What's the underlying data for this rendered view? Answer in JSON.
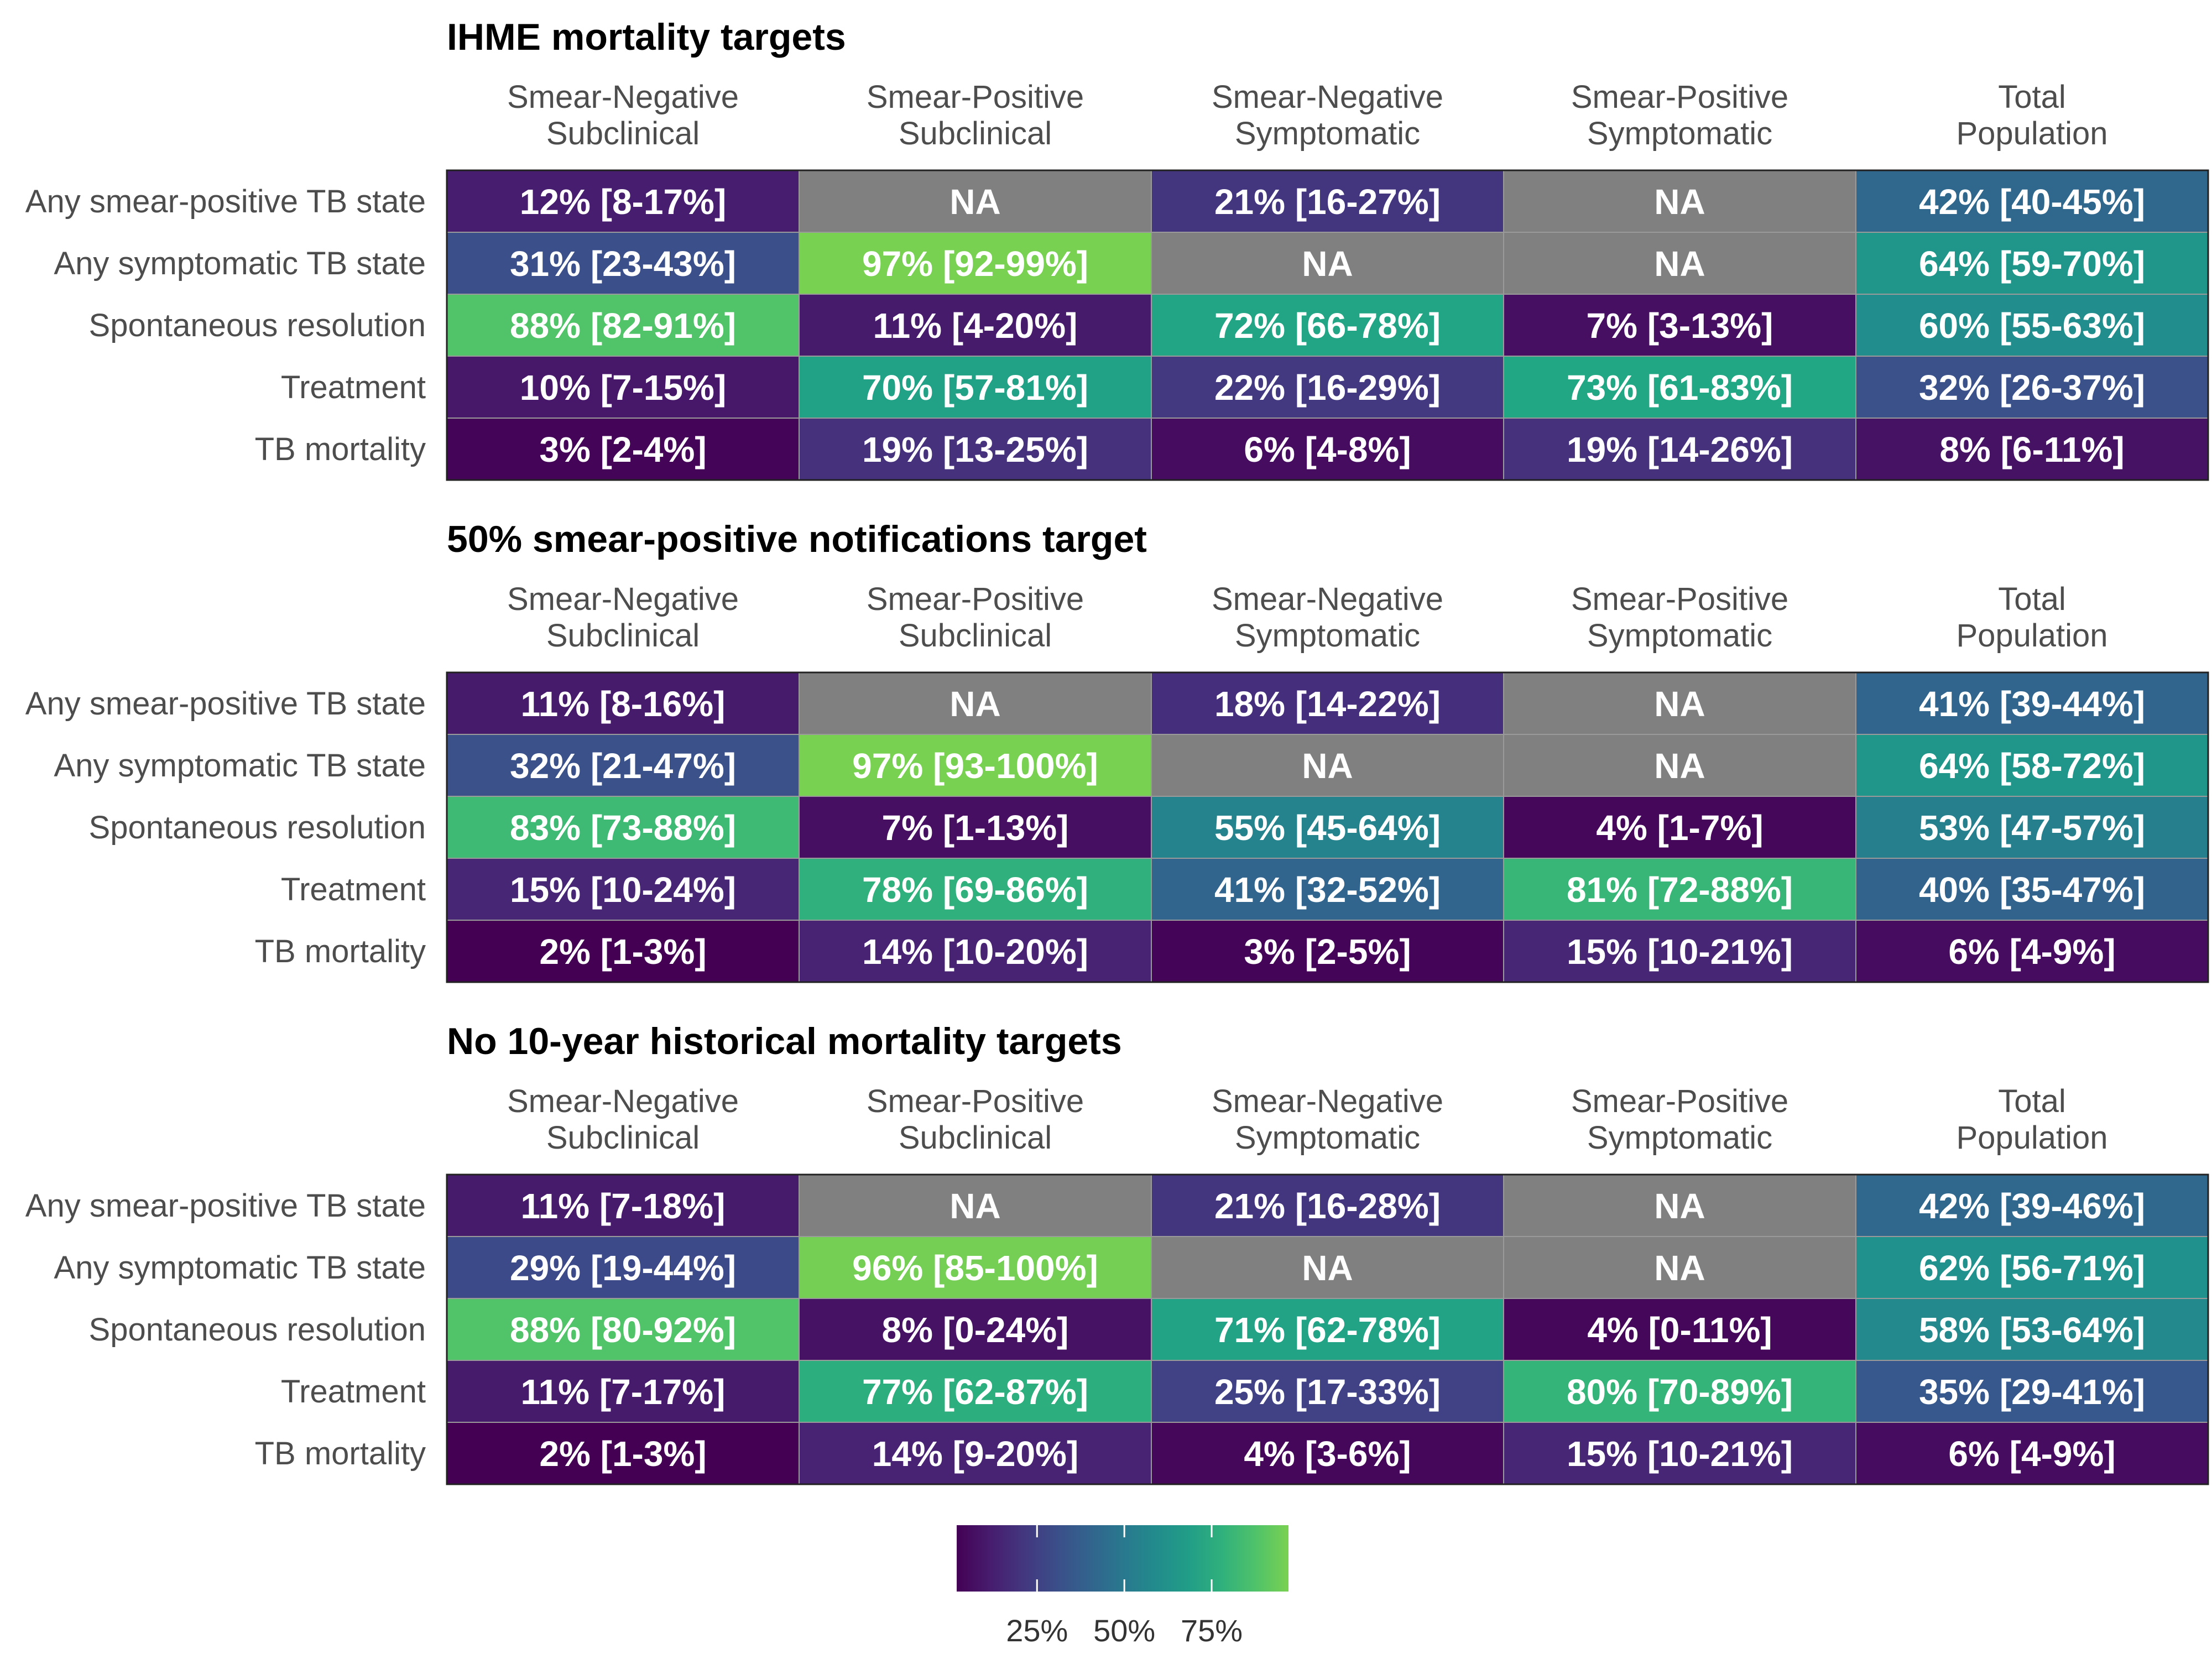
{
  "chart_data": {
    "type": "heatmap",
    "columns": [
      "Smear-Negative\nSubclinical",
      "Smear-Positive\nSubclinical",
      "Smear-Negative\nSymptomatic",
      "Smear-Positive\nSymptomatic",
      "Total\nPopulation"
    ],
    "rows": [
      "Any smear-positive TB state",
      "Any symptomatic TB state",
      "Spontaneous resolution",
      "Treatment",
      "TB mortality"
    ],
    "na_color": "#808080",
    "colormap": "viridis",
    "value_range": [
      0,
      100
    ],
    "panels": [
      {
        "title": "IHME mortality targets",
        "cells": [
          [
            {
              "v": 12,
              "label": "12% [8-17%]"
            },
            {
              "v": null,
              "label": "NA"
            },
            {
              "v": 21,
              "label": "21% [16-27%]"
            },
            {
              "v": null,
              "label": "NA"
            },
            {
              "v": 42,
              "label": "42% [40-45%]"
            }
          ],
          [
            {
              "v": 31,
              "label": "31% [23-43%]"
            },
            {
              "v": 97,
              "label": "97% [92-99%]"
            },
            {
              "v": null,
              "label": "NA"
            },
            {
              "v": null,
              "label": "NA"
            },
            {
              "v": 64,
              "label": "64% [59-70%]"
            }
          ],
          [
            {
              "v": 88,
              "label": "88% [82-91%]"
            },
            {
              "v": 11,
              "label": "11% [4-20%]"
            },
            {
              "v": 72,
              "label": "72% [66-78%]"
            },
            {
              "v": 7,
              "label": "7% [3-13%]"
            },
            {
              "v": 60,
              "label": "60% [55-63%]"
            }
          ],
          [
            {
              "v": 10,
              "label": "10% [7-15%]"
            },
            {
              "v": 70,
              "label": "70% [57-81%]"
            },
            {
              "v": 22,
              "label": "22% [16-29%]"
            },
            {
              "v": 73,
              "label": "73% [61-83%]"
            },
            {
              "v": 32,
              "label": "32% [26-37%]"
            }
          ],
          [
            {
              "v": 3,
              "label": "3% [2-4%]"
            },
            {
              "v": 19,
              "label": "19% [13-25%]"
            },
            {
              "v": 6,
              "label": "6% [4-8%]"
            },
            {
              "v": 19,
              "label": "19% [14-26%]"
            },
            {
              "v": 8,
              "label": "8% [6-11%]"
            }
          ]
        ]
      },
      {
        "title": "50% smear-positive notifications target",
        "cells": [
          [
            {
              "v": 11,
              "label": "11% [8-16%]"
            },
            {
              "v": null,
              "label": "NA"
            },
            {
              "v": 18,
              "label": "18% [14-22%]"
            },
            {
              "v": null,
              "label": "NA"
            },
            {
              "v": 41,
              "label": "41% [39-44%]"
            }
          ],
          [
            {
              "v": 32,
              "label": "32% [21-47%]"
            },
            {
              "v": 97,
              "label": "97% [93-100%]"
            },
            {
              "v": null,
              "label": "NA"
            },
            {
              "v": null,
              "label": "NA"
            },
            {
              "v": 64,
              "label": "64% [58-72%]"
            }
          ],
          [
            {
              "v": 83,
              "label": "83% [73-88%]"
            },
            {
              "v": 7,
              "label": "7% [1-13%]"
            },
            {
              "v": 55,
              "label": "55% [45-64%]"
            },
            {
              "v": 4,
              "label": "4% [1-7%]"
            },
            {
              "v": 53,
              "label": "53% [47-57%]"
            }
          ],
          [
            {
              "v": 15,
              "label": "15% [10-24%]"
            },
            {
              "v": 78,
              "label": "78% [69-86%]"
            },
            {
              "v": 41,
              "label": "41% [32-52%]"
            },
            {
              "v": 81,
              "label": "81% [72-88%]"
            },
            {
              "v": 40,
              "label": "40% [35-47%]"
            }
          ],
          [
            {
              "v": 2,
              "label": "2% [1-3%]"
            },
            {
              "v": 14,
              "label": "14% [10-20%]"
            },
            {
              "v": 3,
              "label": "3% [2-5%]"
            },
            {
              "v": 15,
              "label": "15% [10-21%]"
            },
            {
              "v": 6,
              "label": "6% [4-9%]"
            }
          ]
        ]
      },
      {
        "title": "No 10-year historical mortality targets",
        "cells": [
          [
            {
              "v": 11,
              "label": "11% [7-18%]"
            },
            {
              "v": null,
              "label": "NA"
            },
            {
              "v": 21,
              "label": "21% [16-28%]"
            },
            {
              "v": null,
              "label": "NA"
            },
            {
              "v": 42,
              "label": "42% [39-46%]"
            }
          ],
          [
            {
              "v": 29,
              "label": "29% [19-44%]"
            },
            {
              "v": 96,
              "label": "96% [85-100%]"
            },
            {
              "v": null,
              "label": "NA"
            },
            {
              "v": null,
              "label": "NA"
            },
            {
              "v": 62,
              "label": "62% [56-71%]"
            }
          ],
          [
            {
              "v": 88,
              "label": "88% [80-92%]"
            },
            {
              "v": 8,
              "label": "8% [0-24%]"
            },
            {
              "v": 71,
              "label": "71% [62-78%]"
            },
            {
              "v": 4,
              "label": "4% [0-11%]"
            },
            {
              "v": 58,
              "label": "58% [53-64%]"
            }
          ],
          [
            {
              "v": 11,
              "label": "11% [7-17%]"
            },
            {
              "v": 77,
              "label": "77% [62-87%]"
            },
            {
              "v": 25,
              "label": "25% [17-33%]"
            },
            {
              "v": 80,
              "label": "80% [70-89%]"
            },
            {
              "v": 35,
              "label": "35% [29-41%]"
            }
          ],
          [
            {
              "v": 2,
              "label": "2% [1-3%]"
            },
            {
              "v": 14,
              "label": "14% [9-20%]"
            },
            {
              "v": 4,
              "label": "4% [3-6%]"
            },
            {
              "v": 15,
              "label": "15% [10-21%]"
            },
            {
              "v": 6,
              "label": "6% [4-9%]"
            }
          ]
        ]
      }
    ],
    "legend": {
      "position": "bottom",
      "ticks": [
        25,
        50,
        75
      ],
      "tick_labels": [
        "25%",
        "50%",
        "75%"
      ],
      "range": [
        2,
        97
      ]
    }
  }
}
